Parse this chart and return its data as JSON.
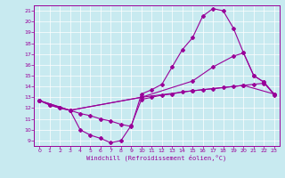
{
  "xlabel": "Windchill (Refroidissement éolien,°C)",
  "bg_color": "#c8eaf0",
  "line_color": "#990099",
  "xlim": [
    -0.5,
    23.5
  ],
  "ylim": [
    8.5,
    21.5
  ],
  "xticks": [
    0,
    1,
    2,
    3,
    4,
    5,
    6,
    7,
    8,
    9,
    10,
    11,
    12,
    13,
    14,
    15,
    16,
    17,
    18,
    19,
    20,
    21,
    22,
    23
  ],
  "yticks": [
    9,
    10,
    11,
    12,
    13,
    14,
    15,
    16,
    17,
    18,
    19,
    20,
    21
  ],
  "line1_x": [
    0,
    1,
    2,
    3,
    4,
    5,
    6,
    7,
    8,
    9,
    10,
    11,
    12,
    13,
    14,
    15,
    16,
    17,
    18,
    19,
    20,
    21,
    22,
    23
  ],
  "line1_y": [
    12.7,
    12.3,
    12.0,
    11.8,
    10.0,
    9.5,
    9.2,
    8.8,
    9.0,
    10.4,
    12.8,
    13.0,
    13.2,
    13.3,
    13.5,
    13.6,
    13.7,
    13.8,
    13.9,
    14.0,
    14.1,
    14.2,
    14.3,
    13.3
  ],
  "line2_x": [
    0,
    1,
    2,
    3,
    4,
    5,
    6,
    7,
    8,
    9,
    10,
    11,
    12,
    13,
    14,
    15,
    16,
    17,
    18,
    19,
    20,
    21,
    22,
    23
  ],
  "line2_y": [
    12.7,
    12.3,
    12.0,
    11.8,
    11.5,
    11.3,
    11.0,
    10.8,
    10.5,
    10.3,
    13.3,
    13.7,
    14.2,
    15.8,
    17.4,
    18.5,
    20.5,
    21.2,
    21.0,
    19.4,
    17.1,
    15.0,
    14.4,
    13.2
  ],
  "line3_x": [
    0,
    3,
    10,
    15,
    17,
    19,
    20,
    21,
    22,
    23
  ],
  "line3_y": [
    12.7,
    11.8,
    13.0,
    14.5,
    15.8,
    16.8,
    17.1,
    15.0,
    14.4,
    13.3
  ],
  "line4_x": [
    0,
    3,
    10,
    15,
    20,
    23
  ],
  "line4_y": [
    12.7,
    11.8,
    13.0,
    13.6,
    14.1,
    13.3
  ]
}
